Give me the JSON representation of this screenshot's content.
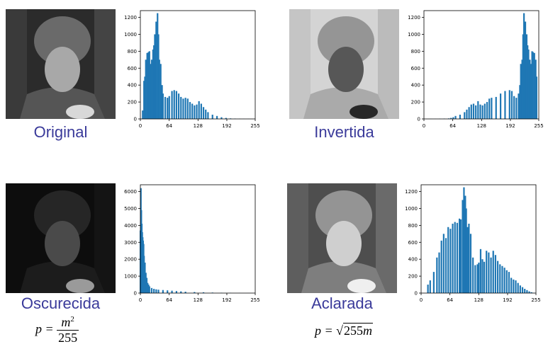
{
  "panels": [
    {
      "caption": "Original",
      "tone": "normal"
    },
    {
      "caption": "Invertida",
      "tone": "inverted"
    },
    {
      "caption": "Oscurecida",
      "tone": "dark"
    },
    {
      "caption": "Aclarada",
      "tone": "light"
    }
  ],
  "formulas": {
    "dark": {
      "lhs": "p =",
      "num_base": "m",
      "num_exp": "2",
      "den": "255"
    },
    "light": {
      "lhs": "p =",
      "radical": "√",
      "radicand_num": "255",
      "radicand_var": "m"
    }
  },
  "colors": {
    "caption": "#3a3a9a",
    "bars": "#1f77b4"
  },
  "chart_data": [
    {
      "type": "bar",
      "panel": "Original",
      "xticks": [
        0,
        64,
        128,
        192,
        255
      ],
      "yticks": [
        0,
        200,
        400,
        600,
        800,
        1000,
        1200
      ],
      "xlim": [
        0,
        255
      ],
      "ylim": [
        0,
        1280
      ],
      "x": [
        5,
        8,
        10,
        12,
        15,
        18,
        20,
        22,
        25,
        28,
        30,
        32,
        35,
        38,
        40,
        42,
        45,
        48,
        50,
        55,
        60,
        64,
        70,
        75,
        80,
        85,
        90,
        95,
        100,
        105,
        110,
        115,
        120,
        125,
        130,
        135,
        140,
        145,
        150,
        160,
        170,
        180,
        190,
        200,
        210,
        220,
        230,
        240,
        250
      ],
      "values": [
        100,
        450,
        500,
        700,
        780,
        790,
        800,
        650,
        700,
        820,
        870,
        1000,
        1150,
        1250,
        1000,
        700,
        650,
        400,
        300,
        260,
        250,
        270,
        330,
        340,
        330,
        300,
        260,
        240,
        250,
        240,
        200,
        180,
        160,
        170,
        210,
        180,
        140,
        110,
        80,
        50,
        35,
        20,
        12,
        6,
        4,
        2,
        1,
        1,
        0
      ]
    },
    {
      "type": "bar",
      "panel": "Invertida",
      "xticks": [
        0,
        64,
        128,
        192,
        255
      ],
      "yticks": [
        0,
        200,
        400,
        600,
        800,
        1000,
        1200
      ],
      "xlim": [
        0,
        255
      ],
      "ylim": [
        0,
        1280
      ],
      "x": [
        5,
        15,
        25,
        35,
        45,
        55,
        60,
        65,
        70,
        80,
        90,
        95,
        100,
        105,
        110,
        115,
        120,
        125,
        130,
        135,
        140,
        145,
        150,
        160,
        170,
        180,
        190,
        195,
        200,
        205,
        210,
        213,
        215,
        218,
        220,
        222,
        225,
        228,
        230,
        232,
        235,
        238,
        240,
        242,
        245,
        248,
        250
      ],
      "values": [
        0,
        1,
        1,
        2,
        4,
        6,
        12,
        20,
        35,
        50,
        80,
        110,
        140,
        170,
        180,
        160,
        210,
        170,
        160,
        180,
        200,
        240,
        250,
        260,
        300,
        330,
        340,
        330,
        270,
        250,
        300,
        400,
        650,
        700,
        1000,
        1250,
        1150,
        1000,
        870,
        820,
        700,
        650,
        800,
        790,
        780,
        700,
        500
      ]
    },
    {
      "type": "bar",
      "panel": "Oscurecida",
      "xticks": [
        0,
        64,
        128,
        192,
        255
      ],
      "yticks": [
        0,
        1000,
        2000,
        3000,
        4000,
        5000,
        6000
      ],
      "xlim": [
        0,
        255
      ],
      "ylim": [
        0,
        6400
      ],
      "x": [
        0,
        1,
        2,
        3,
        4,
        5,
        6,
        7,
        8,
        10,
        12,
        14,
        16,
        18,
        20,
        25,
        30,
        35,
        40,
        50,
        60,
        70,
        80,
        90,
        100,
        120,
        140,
        160,
        180,
        200,
        220,
        240
      ],
      "values": [
        3700,
        6200,
        4900,
        4100,
        3600,
        3300,
        3100,
        2900,
        2200,
        1800,
        1200,
        900,
        600,
        500,
        400,
        300,
        250,
        220,
        200,
        180,
        160,
        140,
        120,
        100,
        80,
        60,
        45,
        30,
        20,
        10,
        5,
        2
      ]
    },
    {
      "type": "bar",
      "panel": "Aclarada",
      "xticks": [
        0,
        64,
        128,
        192,
        255
      ],
      "yticks": [
        0,
        200,
        400,
        600,
        800,
        1000,
        1200
      ],
      "xlim": [
        0,
        255
      ],
      "ylim": [
        0,
        1280
      ],
      "x": [
        15,
        20,
        28,
        35,
        40,
        45,
        50,
        55,
        60,
        65,
        70,
        75,
        80,
        85,
        88,
        92,
        95,
        98,
        100,
        103,
        106,
        110,
        115,
        120,
        125,
        128,
        132,
        136,
        140,
        145,
        150,
        155,
        160,
        165,
        170,
        175,
        180,
        185,
        190,
        195,
        200,
        205,
        210,
        215,
        220,
        225,
        230,
        235,
        240,
        245,
        250
      ],
      "values": [
        100,
        150,
        250,
        420,
        480,
        620,
        700,
        650,
        780,
        760,
        820,
        840,
        830,
        880,
        870,
        1100,
        1250,
        1150,
        1000,
        780,
        820,
        700,
        420,
        330,
        340,
        360,
        520,
        400,
        370,
        500,
        480,
        420,
        500,
        450,
        380,
        340,
        320,
        300,
        270,
        250,
        180,
        160,
        150,
        120,
        90,
        70,
        50,
        35,
        20,
        10,
        4
      ]
    }
  ]
}
